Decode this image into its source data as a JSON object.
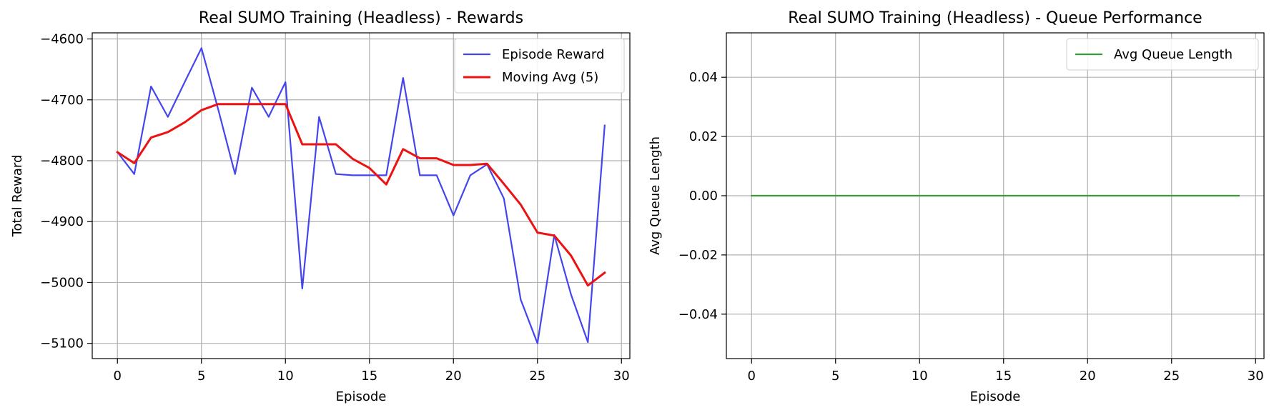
{
  "chart_data": [
    {
      "type": "line",
      "title": "Real SUMO Training (Headless) - Rewards",
      "xlabel": "Episode",
      "ylabel": "Total Reward",
      "xlim": [
        -1.5,
        30.5
      ],
      "ylim": [
        -5125,
        -4590
      ],
      "xticks": [
        0,
        5,
        10,
        15,
        20,
        25,
        30
      ],
      "yticks": [
        -4600,
        -4700,
        -4800,
        -4900,
        -5000,
        -5100
      ],
      "ytick_labels": [
        "−4600",
        "−4700",
        "−4800",
        "−4900",
        "−5000",
        "−5100"
      ],
      "grid": true,
      "legend_position": "top-right",
      "series": [
        {
          "name": "Episode Reward",
          "color": "#4545ee",
          "x": [
            0,
            1,
            2,
            3,
            4,
            5,
            6,
            7,
            8,
            9,
            10,
            11,
            12,
            13,
            14,
            15,
            16,
            17,
            18,
            19,
            20,
            21,
            22,
            23,
            24,
            25,
            26,
            27,
            28,
            29
          ],
          "values": [
            -4786,
            -4822,
            -4678,
            -4728,
            -4671,
            -4615,
            -4716,
            -4822,
            -4680,
            -4728,
            -4671,
            -5010,
            -4728,
            -4822,
            -4824,
            -4824,
            -4824,
            -4664,
            -4824,
            -4824,
            -4890,
            -4824,
            -4806,
            -4862,
            -5028,
            -5100,
            -4922,
            -5020,
            -5098,
            -4742
          ]
        },
        {
          "name": "Moving Avg (5)",
          "color": "#ee1111",
          "x": [
            0,
            1,
            2,
            3,
            4,
            5,
            6,
            7,
            8,
            9,
            10,
            11,
            12,
            13,
            14,
            15,
            16,
            17,
            18,
            19,
            20,
            21,
            22,
            23,
            24,
            25,
            26,
            27,
            28,
            29
          ],
          "values": [
            -4786,
            -4804,
            -4762,
            -4753,
            -4737,
            -4717,
            -4707,
            -4707,
            -4707,
            -4707,
            -4707,
            -4773,
            -4773,
            -4773,
            -4797,
            -4812,
            -4839,
            -4781,
            -4796,
            -4796,
            -4807,
            -4807,
            -4805,
            -4838,
            -4872,
            -4918,
            -4923,
            -4956,
            -5005,
            -4984
          ]
        }
      ]
    },
    {
      "type": "line",
      "title": "Real SUMO Training (Headless) - Queue Performance",
      "xlabel": "Episode",
      "ylabel": "Avg Queue Length",
      "xlim": [
        -1.5,
        30.5
      ],
      "ylim": [
        -0.055,
        0.055
      ],
      "xticks": [
        0,
        5,
        10,
        15,
        20,
        25,
        30
      ],
      "yticks": [
        0.04,
        0.02,
        0.0,
        -0.02,
        -0.04
      ],
      "ytick_labels": [
        "0.04",
        "0.02",
        "0.00",
        "−0.02",
        "−0.04"
      ],
      "grid": true,
      "legend_position": "top-right",
      "series": [
        {
          "name": "Avg Queue Length",
          "color": "#3a9a3a",
          "x": [
            0,
            1,
            2,
            3,
            4,
            5,
            6,
            7,
            8,
            9,
            10,
            11,
            12,
            13,
            14,
            15,
            16,
            17,
            18,
            19,
            20,
            21,
            22,
            23,
            24,
            25,
            26,
            27,
            28,
            29
          ],
          "values": [
            0,
            0,
            0,
            0,
            0,
            0,
            0,
            0,
            0,
            0,
            0,
            0,
            0,
            0,
            0,
            0,
            0,
            0,
            0,
            0,
            0,
            0,
            0,
            0,
            0,
            0,
            0,
            0,
            0,
            0
          ]
        }
      ]
    }
  ]
}
